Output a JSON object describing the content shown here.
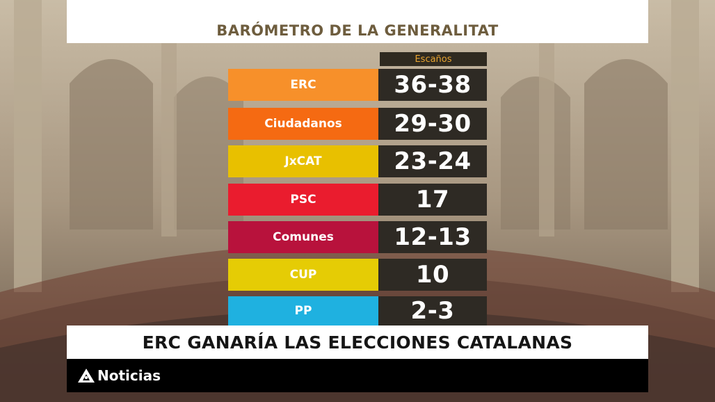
{
  "title": "BARÓMETRO DE LA GENERALITAT",
  "column_header": "Escaños",
  "rows": [
    {
      "party": "ERC",
      "seats": "36-38",
      "color": "#f7902a"
    },
    {
      "party": "Ciudadanos",
      "seats": "29-30",
      "color": "#f56a12"
    },
    {
      "party": "JxCAT",
      "seats": "23-24",
      "color": "#e8c000"
    },
    {
      "party": "PSC",
      "seats": "17",
      "color": "#ea1c2e"
    },
    {
      "party": "Comunes",
      "seats": "12-13",
      "color": "#b8123c"
    },
    {
      "party": "CUP",
      "seats": "10",
      "color": "#e5cc05"
    },
    {
      "party": "PP",
      "seats": "2-3",
      "color": "#1fb1e0"
    }
  ],
  "headline": "ERC GANARÍA LAS ELECCIONES CATALANAS",
  "brand": {
    "name": "Noticias",
    "icon": "antena3-logo-icon"
  }
}
